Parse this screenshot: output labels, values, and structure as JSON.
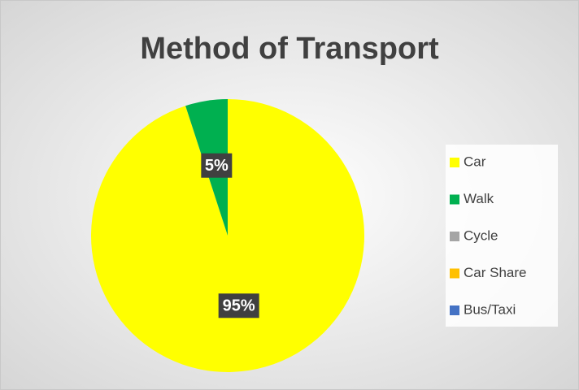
{
  "chart_data": {
    "type": "pie",
    "title": "Method of Transport",
    "categories": [
      "Car",
      "Walk",
      "Cycle",
      "Car Share",
      "Bus/Taxi"
    ],
    "values": [
      95,
      5,
      0,
      0,
      0
    ],
    "value_labels": [
      "95%",
      "5%",
      null,
      null,
      null
    ],
    "colors": [
      "#ffff00",
      "#00b050",
      "#a5a5a5",
      "#ffc000",
      "#4472c4"
    ],
    "legend": "right"
  }
}
